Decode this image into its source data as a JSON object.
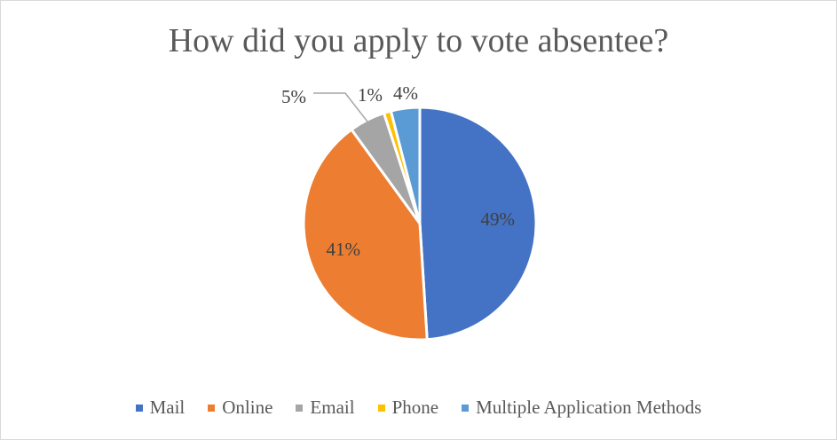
{
  "chart_data": {
    "type": "pie",
    "title": "How did you apply to vote absentee?",
    "categories": [
      "Mail",
      "Online",
      "Email",
      "Phone",
      "Multiple Application Methods"
    ],
    "values": [
      49,
      41,
      5,
      1,
      4
    ],
    "labels": [
      "49%",
      "41%",
      "5%",
      "1%",
      "4%"
    ],
    "colors": [
      "#4472c4",
      "#ed7d31",
      "#a5a5a5",
      "#ffc000",
      "#5b9bd5"
    ],
    "legend": "bottom"
  }
}
